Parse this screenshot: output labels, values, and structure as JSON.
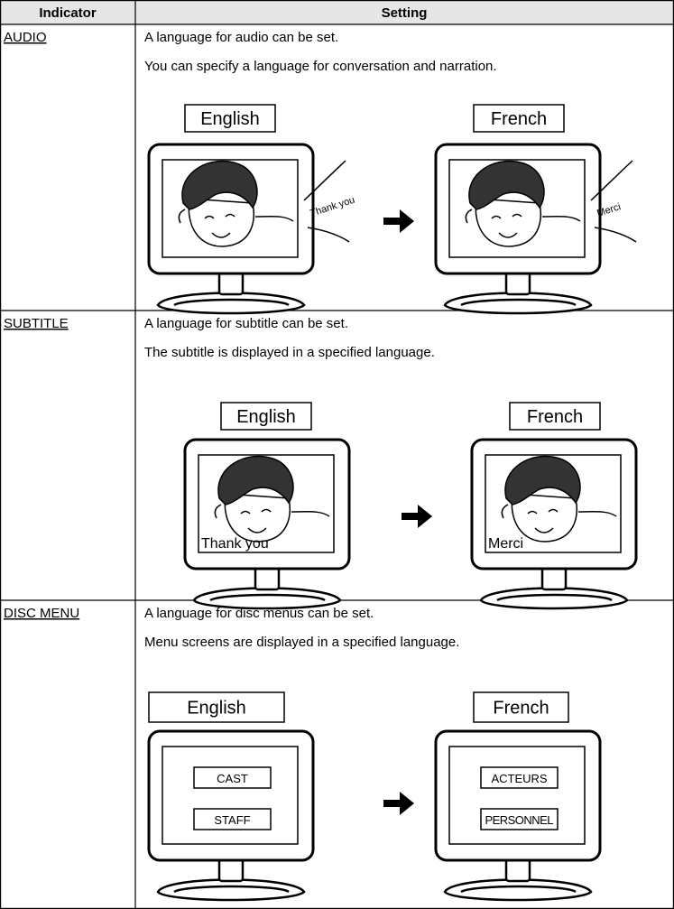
{
  "header": {
    "indicator": "Indicator",
    "setting": "Setting"
  },
  "rows": [
    {
      "indicator": "AUDIO",
      "lines": [
        "A language for audio can be set.",
        "You can specify a language for conversation and narration."
      ],
      "before": {
        "label": "English",
        "screen_texts": [
          "Thank you"
        ]
      },
      "after": {
        "label": "French",
        "screen_texts": [
          "Merci"
        ]
      }
    },
    {
      "indicator": "SUBTITLE",
      "lines": [
        "A language for subtitle can be set.",
        "The subtitle is displayed in a specified language."
      ],
      "before": {
        "label": "English",
        "screen_texts": [
          "Thank you"
        ]
      },
      "after": {
        "label": "French",
        "screen_texts": [
          "Merci"
        ]
      }
    },
    {
      "indicator": "DISC MENU",
      "lines": [
        "A language for disc menus can be set.",
        "Menu screens are displayed in a specified language."
      ],
      "before": {
        "label": "English",
        "screen_texts": [
          "CAST",
          "STAFF"
        ]
      },
      "after": {
        "label": "French",
        "screen_texts": [
          "ACTEURS",
          "PERSONNEL"
        ]
      }
    }
  ]
}
